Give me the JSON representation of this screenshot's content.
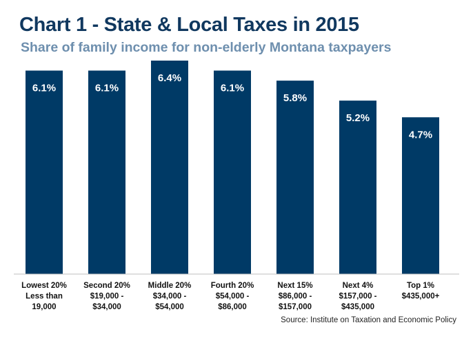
{
  "chart_data": {
    "type": "bar",
    "title": "Chart 1 - State & Local Taxes in 2015",
    "subtitle": "Share of family income for non-elderly Montana taxpayers",
    "xlabel": "",
    "ylabel": "",
    "ylim": [
      0,
      6.4
    ],
    "grid": false,
    "legend": "none",
    "bar_color": "#003a66",
    "label_color": "#ffffff",
    "categories": [
      [
        "Lowest 20%",
        "Less than",
        "19,000"
      ],
      [
        "Second 20%",
        "$19,000 -",
        "$34,000"
      ],
      [
        "Middle 20%",
        "$34,000 -",
        "$54,000"
      ],
      [
        "Fourth 20%",
        "$54,000 -",
        "$86,000"
      ],
      [
        "Next 15%",
        "$86,000 -",
        "$157,000"
      ],
      [
        "Next 4%",
        "$157,000 -",
        "$435,000"
      ],
      [
        "Top 1%",
        "$435,000+"
      ]
    ],
    "values": [
      6.1,
      6.1,
      6.4,
      6.1,
      5.8,
      5.2,
      4.7
    ],
    "data_labels": [
      "6.1%",
      "6.1%",
      "6.4%",
      "6.1%",
      "5.8%",
      "5.2%",
      "4.7%"
    ],
    "source": "Source: Institute on Taxation and Economic Policy"
  }
}
